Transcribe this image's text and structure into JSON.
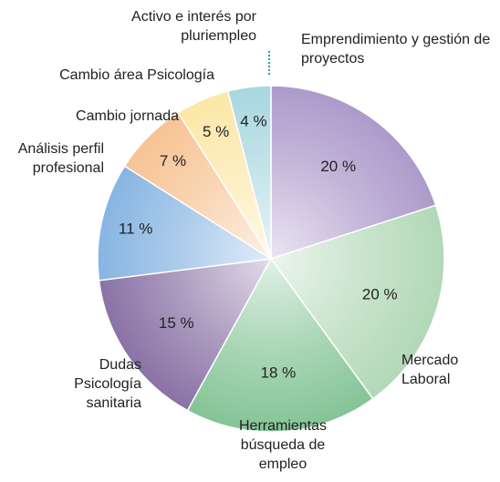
{
  "chart_data": {
    "type": "pie",
    "categories": [
      "Emprendimiento y gestión de proyectos",
      "Mercado Laboral",
      "Herramientas búsqueda de empleo",
      "Dudas Psicología sanitaria",
      "Análisis perfil profesional",
      "Cambio jornada",
      "Cambio área Psicología",
      "Activo e interés por pluriempleo"
    ],
    "values": [
      20,
      20,
      18,
      15,
      11,
      7,
      5,
      4
    ],
    "value_labels": [
      "20 %",
      "20 %",
      "18 %",
      "15 %",
      "11 %",
      "7 %",
      "5 %",
      "4 %"
    ],
    "colors": [
      "#ad9acb",
      "#b2d8b7",
      "#84c496",
      "#8a72a5",
      "#87b5e2",
      "#f7c393",
      "#fce7a6",
      "#a8d7e0"
    ]
  }
}
